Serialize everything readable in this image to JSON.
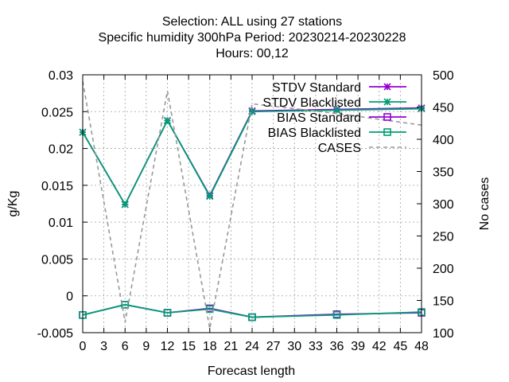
{
  "chart_data": {
    "type": "line",
    "title_lines": [
      "Selection: ALL using    27 stations",
      "Specific humidity 300hPa   Period: 20230214-20230228",
      "Hours:  00,12"
    ],
    "xlabel": "Forecast length",
    "ylabel": "g/Kg",
    "y2label": "No cases",
    "xlim": [
      0,
      48
    ],
    "ylim": [
      -0.005,
      0.03
    ],
    "y2lim": [
      100,
      500
    ],
    "xticks": [
      0,
      3,
      6,
      9,
      12,
      15,
      18,
      21,
      24,
      27,
      30,
      33,
      36,
      39,
      42,
      45,
      48
    ],
    "yticks": [
      -0.005,
      0,
      0.005,
      0.01,
      0.015,
      0.02,
      0.025,
      0.03
    ],
    "ytick_labels": [
      "-0.005",
      "0",
      "0.005",
      "0.01",
      "0.015",
      "0.02",
      "0.025",
      "0.03"
    ],
    "y2ticks": [
      100,
      150,
      200,
      250,
      300,
      350,
      400,
      450,
      500
    ],
    "grid": true,
    "legend_position": "top-right",
    "x": [
      0,
      6,
      12,
      18,
      24,
      36,
      48
    ],
    "series": [
      {
        "name": "STDV Standard",
        "axis": "y",
        "color": "#9400d3",
        "marker": "x-star",
        "dash": false,
        "values": [
          0.0222,
          0.0124,
          0.0238,
          0.0136,
          0.0251,
          0.0253,
          0.0255
        ]
      },
      {
        "name": "STDV Blacklisted",
        "axis": "y",
        "color": "#009e73",
        "marker": "x-star",
        "dash": false,
        "values": [
          0.0222,
          0.0124,
          0.0238,
          0.0135,
          0.025,
          0.0252,
          0.0254
        ]
      },
      {
        "name": "BIAS Standard",
        "axis": "y",
        "color": "#9400d3",
        "marker": "square",
        "dash": false,
        "values": [
          -0.0026,
          -0.0012,
          -0.0023,
          -0.0017,
          -0.0029,
          -0.0025,
          -0.0023
        ]
      },
      {
        "name": "BIAS Blacklisted",
        "axis": "y",
        "color": "#009e73",
        "marker": "square",
        "dash": false,
        "values": [
          -0.0026,
          -0.0012,
          -0.0023,
          -0.0018,
          -0.0029,
          -0.0026,
          -0.0022
        ]
      },
      {
        "name": "CASES",
        "axis": "y2",
        "color": "#999999",
        "marker": "none",
        "dash": true,
        "values": [
          490,
          116,
          475,
          106,
          455,
          440,
          422
        ]
      }
    ]
  }
}
